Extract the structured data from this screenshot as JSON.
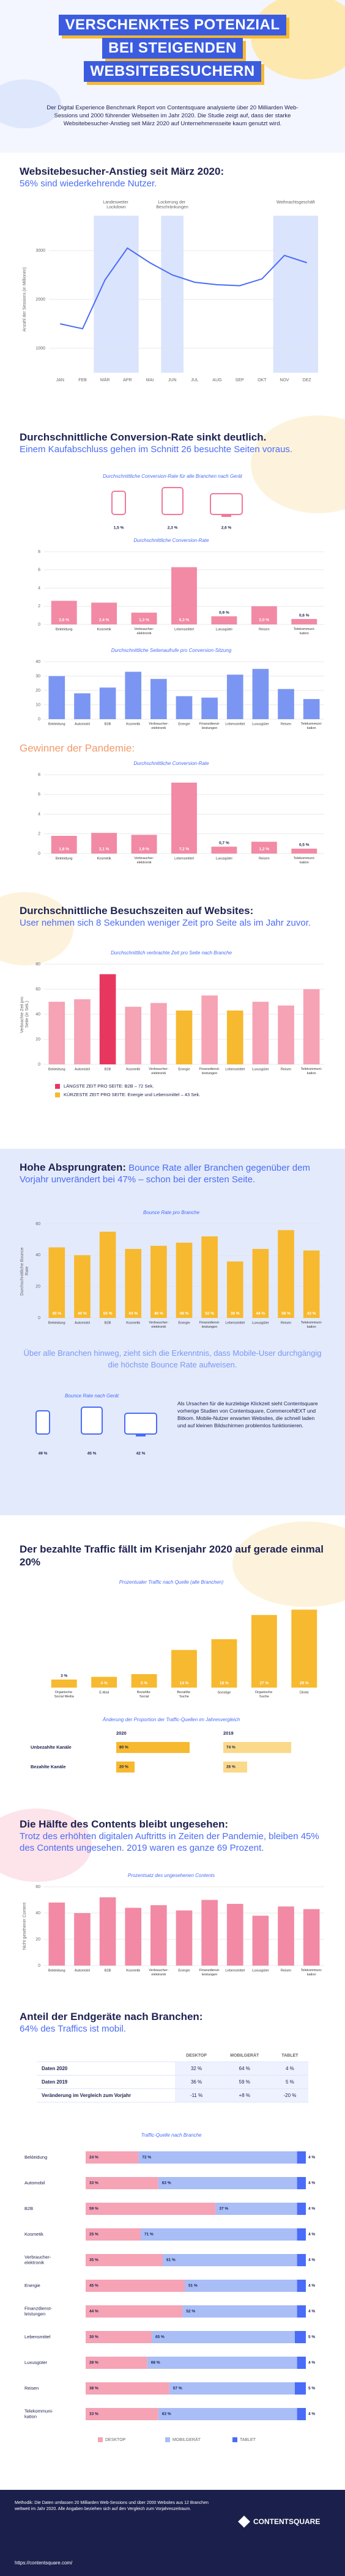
{
  "header": {
    "title": [
      "VERSCHENKTES POTENZIAL",
      "BEI STEIGENDEN",
      "WEBSITEBESUCHERN"
    ],
    "intro": "Der Digital Experience Benchmark Report von Contentsquare analysierte über 20 Milliarden Web-Sessions und 2000 führender Webseiten im Jahr 2020. Die Studie zeigt auf, dass der starke Websitebesucher-Anstieg seit März 2020 auf Unternehmensseite kaum genutzt wird."
  },
  "sections": [
    {
      "heading": "Websitebesucher-Anstieg seit März 2020:",
      "subheading": "56% sind wiederkehrende Nutzer."
    },
    {
      "heading": "Durchschnittliche Conversion-Rate sinkt deutlich.",
      "subheading": "Einem Kaufabschluss gehen im Schnitt 26 besuchte Seiten voraus."
    },
    {
      "subheading": "Gewinner der Pandemie:"
    },
    {
      "heading": "Durchschnittliche Besuchszeiten auf Websites:",
      "subheading": "User nehmen sich 8 Sekunden weniger Zeit pro Seite als im Jahr zuvor."
    },
    {
      "heading": "Hohe Absprungraten:",
      "subheading": "Bounce Rate aller Branchen gegenüber dem Vorjahr unverändert bei 47% – schon bei der ersten Seite."
    },
    {
      "subheading": "Über alle Branchen hinweg, zieht sich die Erkenntnis, dass Mobile-User durchgängig die höchste Bounce Rate aufweisen."
    },
    {
      "heading": "Der bezahlte Traffic fällt im Krisenjahr 2020 auf gerade einmal 20%"
    },
    {
      "heading": "Die Hälfte des Contents bleibt ungesehen:",
      "subheading": "Trotz des erhöhten digitalen Auftritts in Zeiten der Pandemie, bleiben 45% des Contents ungesehen. 2019 waren es ganze 69 Prozent."
    },
    {
      "heading": "Anteil der Endgeräte nach Branchen:",
      "subheading": "64% des Traffics ist mobil."
    }
  ],
  "chart_data": [
    {
      "type": "line",
      "y_label": "Anzahl der Sessions (in Millionen)",
      "categories": [
        "JAN",
        "FEB",
        "MÄR",
        "APR",
        "MAI",
        "JUN",
        "JUL",
        "AUG",
        "SEP",
        "OKT",
        "NOV",
        "DEZ"
      ],
      "values": [
        1500,
        1400,
        2400,
        3050,
        2750,
        2500,
        2350,
        2300,
        2280,
        2420,
        2900,
        2750
      ],
      "color": "#4a6cf7",
      "ylim": [
        500,
        3500
      ],
      "yticks": [
        1000,
        2000,
        3000
      ],
      "grid": true,
      "annotations": [
        "Landesweiter Lockdown",
        "Lockerung der Beschränkungen",
        "Weihnachtsgeschäft"
      ]
    },
    {
      "type": "device",
      "title": "Durchschnittliche Conversion-Rate für alle Branchen nach Gerät",
      "values": [
        1.5,
        2.3,
        2.6
      ],
      "value_labels": [
        "1,5 %",
        "2,3 %",
        "2,6 %"
      ],
      "color": "#f0789a"
    },
    {
      "type": "bar",
      "title": "Durchschnittliche Conversion-Rate",
      "categories": [
        "Bekleidung",
        "Kosmetik",
        "Verbraucher-elektronik",
        "Lebensmittel",
        "Luxusgüter",
        "Reisen",
        "Telekommuni-kation"
      ],
      "values": [
        2.6,
        2.4,
        1.3,
        6.3,
        0.9,
        2.0,
        0.6
      ],
      "value_labels": [
        "2,6 %",
        "2,4 %",
        "1,3 %",
        "6,3 %",
        "0,9 %",
        "2,0 %",
        "0,6 %"
      ],
      "color": "#f28aa5",
      "ylim": [
        0,
        8
      ],
      "yticks": [
        0,
        2,
        4,
        6,
        8
      ],
      "grid": true
    },
    {
      "type": "bar",
      "title": "Durchschnittliche Seitenaufrufe pro Conversion-Sitzung",
      "categories": [
        "Bekleidung",
        "Automobil",
        "B2B",
        "Kosmetik",
        "Verbraucher-elektronik",
        "Energie",
        "Finanzdienst-leistungen",
        "Lebensmittel",
        "Luxusgüter",
        "Reisen",
        "Telekommuni-kation"
      ],
      "values": [
        30,
        18,
        22,
        33,
        28,
        16,
        15,
        31,
        35,
        21,
        14
      ],
      "color": "#7b96f2",
      "ylim": [
        0,
        40
      ],
      "yticks": [
        0,
        10,
        20,
        30,
        40
      ],
      "grid": true
    },
    {
      "type": "bar",
      "title": "Durchschnittliche Conversion-Rate",
      "categories": [
        "Bekleidung",
        "Kosmetik",
        "Verbraucher-elektronik",
        "Lebensmittel",
        "Luxusgüter",
        "Reisen",
        "Telekommuni-kation"
      ],
      "values": [
        1.8,
        2.1,
        1.9,
        7.2,
        0.7,
        1.2,
        0.5
      ],
      "value_labels": [
        "1,8 %",
        "2,1 %",
        "1,9 %",
        "7,2 %",
        "0,7 %",
        "1,2 %",
        "0,5 %"
      ],
      "color": "#f28aa5",
      "ylim": [
        0,
        8
      ],
      "yticks": [
        0,
        2,
        4,
        6,
        8
      ],
      "grid": true
    },
    {
      "type": "bar",
      "title": "Durchschnittlich verbrachte Zeit pro Seite nach Branche",
      "y_label": "Verbrachte Zeit pro Seite (in Sek.)",
      "categories": [
        "Bekleidung",
        "Automobil",
        "B2B",
        "Kosmetik",
        "Verbraucher-elektronik",
        "Energie",
        "Finanzdienst-leistungen",
        "Lebensmittel",
        "Luxusgüter",
        "Reisen",
        "Telekommuni-kation"
      ],
      "values": [
        50,
        52,
        72,
        46,
        49,
        43,
        55,
        43,
        50,
        47,
        60
      ],
      "color": "#f5a3b5",
      "colors": [
        "#f5a3b5",
        "#f5a3b5",
        "#e8375f",
        "#f5a3b5",
        "#f5a3b5",
        "#f7b92f",
        "#f5a3b5",
        "#f7b92f",
        "#f5a3b5",
        "#f5a3b5",
        "#f5a3b5"
      ],
      "ylim": [
        0,
        80
      ],
      "yticks": [
        0,
        20,
        40,
        60,
        80
      ],
      "grid": true,
      "legend": [
        {
          "name": "LÄNGSTE ZEIT PRO SEITE: B2B – 72 Sek.",
          "color": "#e8375f"
        },
        {
          "name": "KÜRZESTE ZEIT PRO SEITE: Energie und Lebensmittel – 43 Sek.",
          "color": "#f7b92f"
        }
      ]
    },
    {
      "type": "bar",
      "title": "Bounce Rate pro Branche",
      "y_label": "Durchschnittliche Bounce Rate",
      "categories": [
        "Bekleidung",
        "Automobil",
        "B2B",
        "Kosmetik",
        "Verbraucher-elektronik",
        "Energie",
        "Finanzdienst-leistungen",
        "Lebensmittel",
        "Luxusgüter",
        "Reisen",
        "Telekommuni-kation"
      ],
      "values": [
        45,
        40,
        55,
        44,
        46,
        48,
        52,
        36,
        44,
        56,
        43
      ],
      "value_labels": [
        "45 %",
        "40 %",
        "55 %",
        "44 %",
        "46 %",
        "48 %",
        "52 %",
        "36 %",
        "44 %",
        "56 %",
        "43 %"
      ],
      "color": "#f7b92f",
      "ylim": [
        0,
        60
      ],
      "yticks": [
        0,
        20,
        40,
        60
      ],
      "grid": true
    },
    {
      "type": "device",
      "title": "Bounce Rate nach Gerät",
      "values": [
        49,
        45,
        42
      ],
      "value_labels": [
        "49 %",
        "45 %",
        "42 %"
      ],
      "color": "#4a6cf7",
      "note": "Als Ursachen für die kurzlebige Klickzeit sieht Contentsquare vorherige Studien von Contentsquare, CommerceNEXT und Bitkom. Mobile-Nutzer erwarten Websites, die schnell laden und auf kleinen Bildschirmen problemlos funktionieren."
    },
    {
      "type": "bar",
      "title": "Prozentualer Traffic nach Quelle (alle Branchen)",
      "categories": [
        "Organische Social Media",
        "E-Mail",
        "Bezahlte Social",
        "Bezahlte Suche",
        "Sonstige",
        "Organische Suche",
        "Direkt"
      ],
      "values": [
        3,
        4,
        5,
        14,
        18,
        27,
        29
      ],
      "value_labels": [
        "3 %",
        "4 %",
        "5 %",
        "14 %",
        "18 %",
        "27 %",
        "29 %"
      ],
      "color": "#f7b92f",
      "ylim": [
        0,
        35
      ]
    },
    {
      "type": "compare",
      "title": "Änderung der Proportion der Traffic-Quellen im Jahresvergleich",
      "categories": [
        "Unbezahlte Kanäle",
        "Bezahlte Kanäle"
      ],
      "xlim": [
        0,
        100
      ],
      "series": [
        {
          "name": "2020",
          "color": "#f7b92f",
          "values": [
            80,
            20
          ],
          "value_labels": [
            "80 %",
            "20 %"
          ]
        },
        {
          "name": "2019",
          "color": "#fbd98a",
          "values": [
            74,
            26
          ],
          "value_labels": [
            "74 %",
            "26 %"
          ]
        }
      ]
    },
    {
      "type": "bar",
      "title": "Prozentsatz des ungesehenen Contents",
      "y_label": "Nicht gesehener Content",
      "categories": [
        "Bekleidung",
        "Automobil",
        "B2B",
        "Kosmetik",
        "Verbraucher-elektronik",
        "Energie",
        "Finanzdienst-leistungen",
        "Lebensmittel",
        "Luxusgüter",
        "Reisen",
        "Telekommuni-kation"
      ],
      "values": [
        48,
        40,
        52,
        44,
        46,
        42,
        50,
        47,
        38,
        45,
        43
      ],
      "color": "#f28aa5",
      "ylim": [
        0,
        60
      ],
      "yticks": [
        0,
        20,
        40,
        60
      ],
      "grid": true
    },
    {
      "type": "stacked",
      "title": "Traffic-Quelle nach Branche",
      "xlim": [
        0,
        100
      ],
      "categories": [
        "Bekleidung",
        "Automobil",
        "B2B",
        "Kosmetik",
        "Verbraucher-elektronik",
        "Energie",
        "Finanzdienst-leistungen",
        "Lebensmittel",
        "Luxusgüter",
        "Reisen",
        "Telekommuni-kation"
      ],
      "series": [
        {
          "name": "DESKTOP",
          "color": "#f5a3b5",
          "values": [
            24,
            33,
            59,
            25,
            35,
            45,
            44,
            30,
            28,
            38,
            33
          ],
          "value_labels": [
            "24 %",
            "33 %",
            "59 %",
            "25 %",
            "35 %",
            "45 %",
            "44 %",
            "30 %",
            "28 %",
            "38 %",
            "33 %"
          ]
        },
        {
          "name": "MOBILGERÄT",
          "color": "#a9bdf6",
          "values": [
            72,
            63,
            37,
            71,
            61,
            51,
            52,
            65,
            68,
            57,
            63
          ],
          "value_labels": [
            "72 %",
            "63 %",
            "37 %",
            "71 %",
            "61 %",
            "51 %",
            "52 %",
            "65 %",
            "68 %",
            "57 %",
            "63 %"
          ]
        },
        {
          "name": "TABLET",
          "color": "#4a6cf7",
          "values": [
            4,
            4,
            4,
            4,
            4,
            4,
            4,
            5,
            4,
            5,
            4
          ],
          "value_labels": [
            "4 %",
            "4 %",
            "4 %",
            "4 %",
            "4 %",
            "4 %",
            "4 %",
            "5 %",
            "4 %",
            "5 %",
            "4 %"
          ]
        }
      ]
    }
  ],
  "device_table": {
    "columns": [
      "DESKTOP",
      "MOBILGERÄT",
      "TABLET"
    ],
    "rows": [
      [
        "Daten 2020",
        "32 %",
        "64 %",
        "4 %"
      ],
      [
        "Daten 2019",
        "36 %",
        "59 %",
        "5 %"
      ],
      [
        "Veränderung im Vergleich zum Vorjahr",
        "-11 %",
        "+8 %",
        "-20 %"
      ]
    ]
  },
  "footer": {
    "methodology": "Methodik: Die Daten umfassen 20 Milliarden Web-Sessions und über 2000 Websites aus 12 Branchen weltweit im Jahr 2020. Alle Angaben beziehen sich auf den Vergleich zum Vorjahreszeitraum.",
    "brand": "CONTENTSQUARE",
    "url": "https://contentsquare.com/"
  }
}
